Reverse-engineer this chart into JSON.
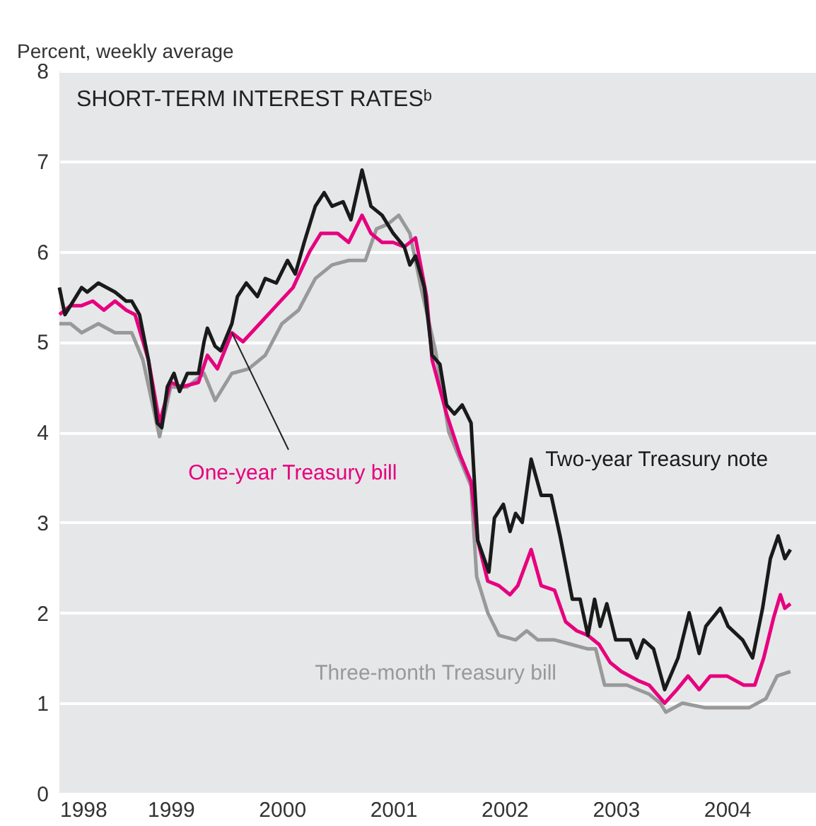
{
  "chart_data": {
    "type": "line",
    "title": "SHORT-TERM INTEREST RATESᵇ",
    "ylabel": "Percent, weekly average",
    "xlim": [
      1998,
      2004.8
    ],
    "xticks": [
      1998,
      1999,
      2000,
      2001,
      2002,
      2003,
      2004
    ],
    "ylim": [
      0,
      8
    ],
    "yticks": [
      0,
      1,
      2,
      3,
      4,
      5,
      6,
      7,
      8
    ],
    "grid": "y",
    "line_style": "solid",
    "marker": "none",
    "series": [
      {
        "name": "Two-year Treasury note",
        "color": "#1a1a1a",
        "x": [
          1998.0,
          1998.05,
          1998.1,
          1998.2,
          1998.25,
          1998.35,
          1998.5,
          1998.6,
          1998.65,
          1998.72,
          1998.8,
          1998.88,
          1998.92,
          1998.97,
          1999.03,
          1999.08,
          1999.15,
          1999.25,
          1999.3,
          1999.33,
          1999.4,
          1999.45,
          1999.55,
          1999.6,
          1999.68,
          1999.78,
          1999.85,
          1999.95,
          2000.05,
          2000.12,
          2000.2,
          2000.3,
          2000.38,
          2000.45,
          2000.55,
          2000.62,
          2000.72,
          2000.8,
          2000.9,
          2001.0,
          2001.1,
          2001.15,
          2001.2,
          2001.28,
          2001.35,
          2001.42,
          2001.48,
          2001.55,
          2001.62,
          2001.7,
          2001.76,
          2001.86,
          2001.91,
          2001.99,
          2002.05,
          2002.1,
          2002.16,
          2002.24,
          2002.33,
          2002.42,
          2002.5,
          2002.61,
          2002.68,
          2002.75,
          2002.81,
          2002.86,
          2002.92,
          2003.0,
          2003.13,
          2003.19,
          2003.25,
          2003.34,
          2003.44,
          2003.56,
          2003.66,
          2003.75,
          2003.81,
          2003.94,
          2004.01,
          2004.14,
          2004.23,
          2004.32,
          2004.39,
          2004.46,
          2004.52,
          2004.57
        ],
        "values": [
          5.6,
          5.3,
          5.4,
          5.6,
          5.55,
          5.65,
          5.55,
          5.45,
          5.45,
          5.3,
          4.8,
          4.1,
          4.05,
          4.5,
          4.65,
          4.45,
          4.65,
          4.65,
          5.0,
          5.15,
          4.95,
          4.9,
          5.2,
          5.5,
          5.65,
          5.5,
          5.7,
          5.65,
          5.9,
          5.75,
          6.1,
          6.5,
          6.65,
          6.5,
          6.55,
          6.35,
          6.9,
          6.5,
          6.4,
          6.2,
          6.05,
          5.85,
          5.95,
          5.6,
          4.85,
          4.75,
          4.3,
          4.2,
          4.3,
          4.1,
          2.8,
          2.45,
          3.05,
          3.2,
          2.9,
          3.1,
          3.0,
          3.7,
          3.3,
          3.3,
          2.85,
          2.15,
          2.15,
          1.75,
          2.15,
          1.85,
          2.1,
          1.7,
          1.7,
          1.5,
          1.7,
          1.6,
          1.15,
          1.5,
          2.0,
          1.55,
          1.85,
          2.05,
          1.85,
          1.7,
          1.5,
          2.05,
          2.6,
          2.85,
          2.6,
          2.7
        ]
      },
      {
        "name": "One-year Treasury bill",
        "color": "#e6007e",
        "x": [
          1998.0,
          1998.1,
          1998.2,
          1998.3,
          1998.4,
          1998.5,
          1998.6,
          1998.68,
          1998.8,
          1998.9,
          1999.0,
          1999.1,
          1999.25,
          1999.33,
          1999.42,
          1999.55,
          1999.65,
          1999.8,
          1999.95,
          2000.1,
          2000.25,
          2000.35,
          2000.5,
          2000.6,
          2000.72,
          2000.8,
          2000.9,
          2001.0,
          2001.1,
          2001.2,
          2001.3,
          2001.35,
          2001.48,
          2001.6,
          2001.7,
          2001.76,
          2001.85,
          2001.95,
          2002.05,
          2002.12,
          2002.24,
          2002.33,
          2002.45,
          2002.55,
          2002.65,
          2002.75,
          2002.85,
          2002.95,
          2003.05,
          2003.2,
          2003.3,
          2003.44,
          2003.55,
          2003.65,
          2003.75,
          2003.85,
          2004.0,
          2004.15,
          2004.25,
          2004.33,
          2004.42,
          2004.48,
          2004.52,
          2004.57
        ],
        "values": [
          5.3,
          5.4,
          5.4,
          5.45,
          5.35,
          5.45,
          5.35,
          5.3,
          4.8,
          4.1,
          4.55,
          4.5,
          4.55,
          4.85,
          4.7,
          5.1,
          5.0,
          5.2,
          5.4,
          5.6,
          6.0,
          6.2,
          6.2,
          6.1,
          6.4,
          6.2,
          6.1,
          6.1,
          6.05,
          6.15,
          5.5,
          4.8,
          4.2,
          3.75,
          3.45,
          2.8,
          2.35,
          2.3,
          2.2,
          2.3,
          2.7,
          2.3,
          2.25,
          1.9,
          1.8,
          1.75,
          1.65,
          1.45,
          1.35,
          1.25,
          1.2,
          1.0,
          1.15,
          1.3,
          1.15,
          1.3,
          1.3,
          1.2,
          1.2,
          1.5,
          1.95,
          2.2,
          2.05,
          2.1
        ]
      },
      {
        "name": "Three-month Treasury bill",
        "color": "#999999",
        "x": [
          1998.0,
          1998.1,
          1998.2,
          1998.35,
          1998.5,
          1998.65,
          1998.75,
          1998.9,
          1999.0,
          1999.15,
          1999.3,
          1999.4,
          1999.55,
          1999.7,
          1999.85,
          2000.0,
          2000.15,
          2000.3,
          2000.45,
          2000.6,
          2000.75,
          2000.85,
          2000.95,
          2001.05,
          2001.15,
          2001.25,
          2001.38,
          2001.5,
          2001.6,
          2001.7,
          2001.75,
          2001.85,
          2001.95,
          2002.1,
          2002.2,
          2002.3,
          2002.45,
          2002.6,
          2002.75,
          2002.82,
          2002.9,
          2003.1,
          2003.3,
          2003.4,
          2003.45,
          2003.6,
          2003.8,
          2004.0,
          2004.2,
          2004.35,
          2004.45,
          2004.57
        ],
        "values": [
          5.2,
          5.2,
          5.1,
          5.2,
          5.1,
          5.1,
          4.8,
          3.95,
          4.5,
          4.5,
          4.65,
          4.35,
          4.65,
          4.7,
          4.85,
          5.2,
          5.35,
          5.7,
          5.85,
          5.9,
          5.9,
          6.25,
          6.3,
          6.4,
          6.2,
          5.6,
          4.9,
          4.0,
          3.7,
          3.4,
          2.4,
          2.0,
          1.75,
          1.7,
          1.8,
          1.7,
          1.7,
          1.65,
          1.6,
          1.6,
          1.2,
          1.2,
          1.1,
          1.0,
          0.9,
          1.0,
          0.95,
          0.95,
          0.95,
          1.05,
          1.3,
          1.35
        ]
      }
    ]
  }
}
